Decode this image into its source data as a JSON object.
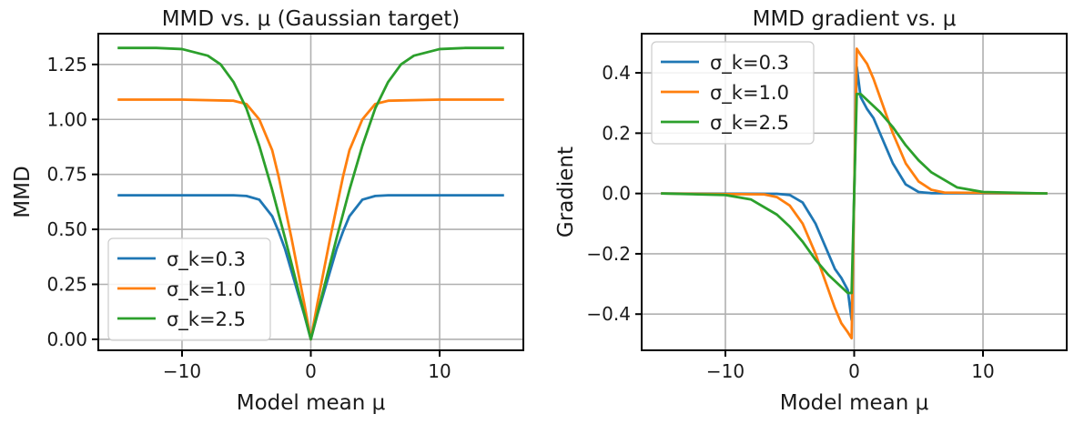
{
  "chart_data": [
    {
      "type": "line",
      "title": "MMD vs. μ (Gaussian target)",
      "xlabel": "Model mean μ",
      "ylabel": "MMD",
      "xlim": [
        -16.5,
        16.5
      ],
      "ylim": [
        -0.05,
        1.39
      ],
      "xticks": [
        -10,
        0,
        10
      ],
      "xtick_labels": [
        "−10",
        "0",
        "10"
      ],
      "yticks": [
        0,
        0.25,
        0.5,
        0.75,
        1.0,
        1.25
      ],
      "ytick_labels": [
        "0.00",
        "0.25",
        "0.50",
        "0.75",
        "1.00",
        "1.25"
      ],
      "grid": true,
      "legend_position": "lower-left",
      "series": [
        {
          "name": "σ_k=0.3",
          "color": "#1f77b4",
          "x": [
            -15,
            -10,
            -6,
            -5,
            -4,
            -3,
            -2.5,
            -2,
            -1.5,
            -1,
            -0.5,
            0,
            0.5,
            1,
            1.5,
            2,
            2.5,
            3,
            4,
            5,
            6,
            10,
            15
          ],
          "y": [
            0.655,
            0.655,
            0.655,
            0.652,
            0.635,
            0.56,
            0.49,
            0.41,
            0.31,
            0.21,
            0.11,
            0.0,
            0.11,
            0.21,
            0.31,
            0.41,
            0.49,
            0.56,
            0.635,
            0.652,
            0.655,
            0.655,
            0.655
          ]
        },
        {
          "name": "σ_k=1.0",
          "color": "#ff7f0e",
          "x": [
            -15,
            -10,
            -6,
            -5,
            -4,
            -3,
            -2.5,
            -2,
            -1.5,
            -1,
            -0.5,
            0,
            0.5,
            1,
            1.5,
            2,
            2.5,
            3,
            4,
            5,
            6,
            10,
            15
          ],
          "y": [
            1.09,
            1.09,
            1.085,
            1.07,
            1.0,
            0.86,
            0.74,
            0.6,
            0.46,
            0.31,
            0.16,
            0.0,
            0.16,
            0.31,
            0.46,
            0.6,
            0.74,
            0.86,
            1.0,
            1.07,
            1.085,
            1.09,
            1.09
          ]
        },
        {
          "name": "σ_k=2.5",
          "color": "#2ca02c",
          "x": [
            -15,
            -12,
            -10,
            -8,
            -7,
            -6,
            -5,
            -4,
            -3,
            -2,
            -1,
            -0.5,
            0,
            0.5,
            1,
            2,
            3,
            4,
            5,
            6,
            7,
            8,
            10,
            12,
            15
          ],
          "y": [
            1.325,
            1.325,
            1.32,
            1.29,
            1.25,
            1.17,
            1.05,
            0.88,
            0.68,
            0.46,
            0.23,
            0.115,
            0.0,
            0.115,
            0.23,
            0.46,
            0.68,
            0.88,
            1.05,
            1.17,
            1.25,
            1.29,
            1.32,
            1.325,
            1.325
          ]
        }
      ]
    },
    {
      "type": "line",
      "title": "MMD gradient vs. μ",
      "xlabel": "Model mean μ",
      "ylabel": "Gradient",
      "xlim": [
        -16.5,
        16.5
      ],
      "ylim": [
        -0.52,
        0.53
      ],
      "xticks": [
        -10,
        0,
        10
      ],
      "xtick_labels": [
        "−10",
        "0",
        "10"
      ],
      "yticks": [
        -0.4,
        -0.2,
        0.0,
        0.2,
        0.4
      ],
      "ytick_labels": [
        "−0.4",
        "−0.2",
        "0.0",
        "0.2",
        "0.4"
      ],
      "grid": true,
      "legend_position": "upper-left",
      "series": [
        {
          "name": "σ_k=0.3",
          "color": "#1f77b4",
          "x": [
            -15,
            -6,
            -5,
            -4,
            -3,
            -2.5,
            -2,
            -1.5,
            -1,
            -0.5,
            -0.2,
            0,
            0.2,
            0.5,
            1,
            1.5,
            2,
            2.5,
            3,
            4,
            5,
            6,
            15
          ],
          "y": [
            0.0,
            -0.001,
            -0.005,
            -0.03,
            -0.1,
            -0.15,
            -0.2,
            -0.25,
            -0.28,
            -0.32,
            -0.42,
            0.0,
            0.42,
            0.32,
            0.28,
            0.25,
            0.2,
            0.15,
            0.1,
            0.03,
            0.005,
            0.001,
            0.0
          ]
        },
        {
          "name": "σ_k=1.0",
          "color": "#ff7f0e",
          "x": [
            -15,
            -7,
            -6,
            -5,
            -4,
            -3,
            -2,
            -1.5,
            -1,
            -0.5,
            -0.2,
            0,
            0.2,
            0.5,
            1,
            1.5,
            2,
            3,
            4,
            5,
            6,
            7,
            15
          ],
          "y": [
            0.0,
            -0.003,
            -0.012,
            -0.04,
            -0.1,
            -0.2,
            -0.32,
            -0.38,
            -0.43,
            -0.46,
            -0.48,
            0.0,
            0.48,
            0.46,
            0.43,
            0.38,
            0.32,
            0.2,
            0.1,
            0.04,
            0.012,
            0.003,
            0.0
          ]
        },
        {
          "name": "σ_k=2.5",
          "color": "#2ca02c",
          "x": [
            -15,
            -10,
            -8,
            -6,
            -5,
            -4,
            -3,
            -2,
            -1,
            -0.5,
            -0.2,
            0,
            0.2,
            0.5,
            1,
            2,
            3,
            4,
            5,
            6,
            8,
            10,
            15
          ],
          "y": [
            0.0,
            -0.005,
            -0.02,
            -0.07,
            -0.11,
            -0.16,
            -0.22,
            -0.27,
            -0.31,
            -0.33,
            -0.33,
            0.0,
            0.33,
            0.33,
            0.31,
            0.27,
            0.22,
            0.16,
            0.11,
            0.07,
            0.02,
            0.005,
            0.0
          ]
        }
      ]
    }
  ]
}
